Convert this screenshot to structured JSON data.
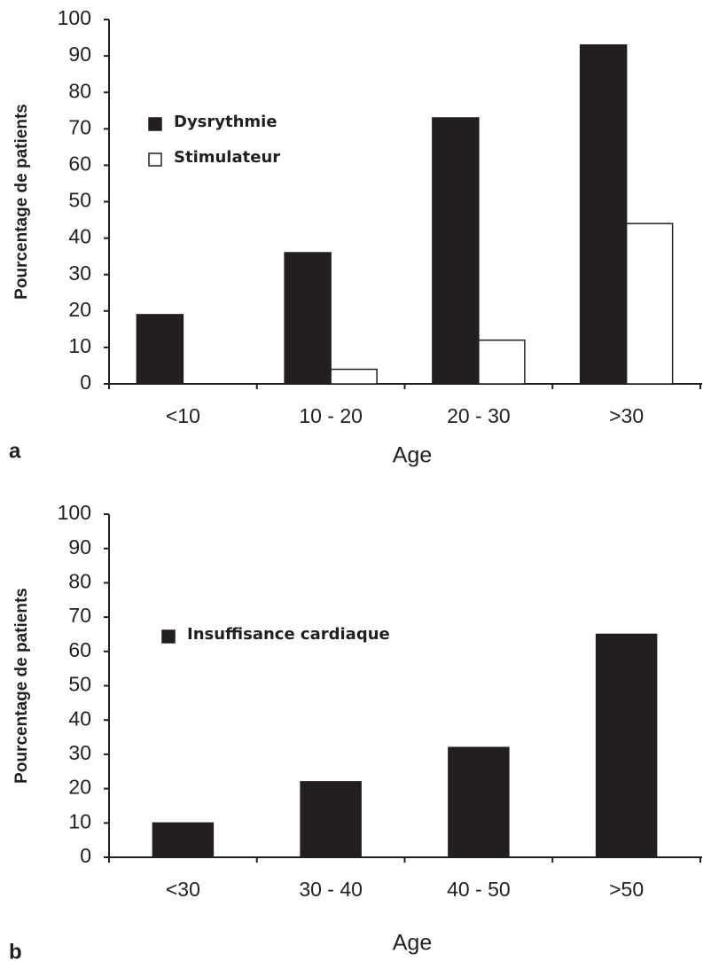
{
  "chart_data": [
    {
      "type": "bar",
      "panel_label": "a",
      "y_label": "Pourcentage de patients",
      "x_label": "Age",
      "categories": [
        "<10",
        "10 - 20",
        "20 - 30",
        ">30"
      ],
      "series": [
        {
          "name": "Dysrythmie",
          "color": "#231f20",
          "values": [
            19,
            36,
            73,
            93
          ]
        },
        {
          "name": "Stimulateur",
          "color": "#ffffff",
          "values": [
            0,
            4,
            12,
            44
          ]
        }
      ],
      "ylim": [
        0,
        100
      ],
      "yticks": [
        0,
        10,
        20,
        30,
        40,
        50,
        60,
        70,
        80,
        90,
        100
      ]
    },
    {
      "type": "bar",
      "panel_label": "b",
      "y_label": "Pourcentage de patients",
      "x_label": "Age",
      "categories": [
        "<30",
        "30 - 40",
        "40 - 50",
        ">50"
      ],
      "series": [
        {
          "name": "Insuffisance cardiaque",
          "color": "#231f20",
          "values": [
            10,
            22,
            32,
            65
          ]
        }
      ],
      "ylim": [
        0,
        100
      ],
      "yticks": [
        0,
        10,
        20,
        30,
        40,
        50,
        60,
        70,
        80,
        90,
        100
      ]
    }
  ]
}
